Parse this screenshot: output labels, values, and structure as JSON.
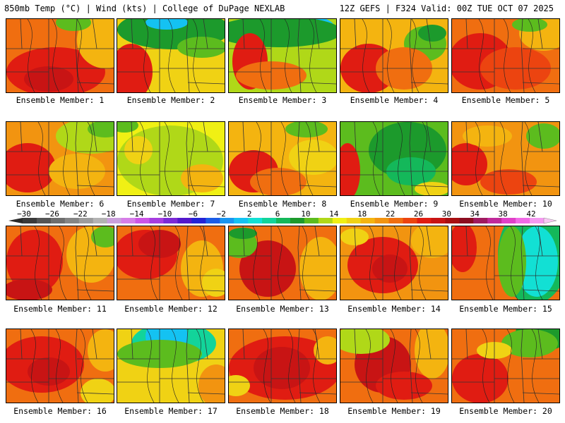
{
  "header": {
    "title_left": "850mb Temp (°C) | Wind (kts) | College of DuPage NEXLAB",
    "title_right": "12Z GEFS | F324 Valid: 00Z TUE OCT 07 2025"
  },
  "colorbar": {
    "tick_labels": [
      "−30",
      "−26",
      "−22",
      "−18",
      "−14",
      "−10",
      "−6",
      "−2",
      "2",
      "6",
      "10",
      "14",
      "18",
      "22",
      "26",
      "30",
      "34",
      "38",
      "42"
    ],
    "min": -30,
    "max": 42,
    "step": 2,
    "colors": [
      "#3a3a3a",
      "#555555",
      "#6e6e6e",
      "#858585",
      "#9c9c9c",
      "#b3b3b3",
      "#caa0dc",
      "#d67ee8",
      "#cc55e6",
      "#a63de0",
      "#7c2ad6",
      "#5318cc",
      "#2323d6",
      "#1a5ce8",
      "#1995f0",
      "#14c2f2",
      "#12e0d4",
      "#12d49a",
      "#14b85a",
      "#1c9a2c",
      "#5cbc1e",
      "#b0d818",
      "#f0f014",
      "#f0d214",
      "#f4b410",
      "#f29410",
      "#f06e10",
      "#ec4410",
      "#e01c12",
      "#c81414",
      "#a80f12",
      "#8c0c20",
      "#a01a60",
      "#c02a9a",
      "#e040c8",
      "#f06ae6",
      "#f49af0"
    ]
  },
  "members": [
    {
      "label": "Ensemble Member: 1",
      "base": "#f06e10",
      "blobs": [
        {
          "c": "#e01c12"
        },
        {
          "c": "#c81414"
        },
        {
          "c": "#f4b410"
        },
        {
          "c": "#5cbc1e"
        }
      ]
    },
    {
      "label": "Ensemble Member: 2",
      "base": "#f0d214",
      "blobs": [
        {
          "c": "#1c9a2c"
        },
        {
          "c": "#14c2f2"
        },
        {
          "c": "#e01c12"
        },
        {
          "c": "#5cbc1e"
        }
      ]
    },
    {
      "label": "Ensemble Member: 3",
      "base": "#b0d818",
      "blobs": [
        {
          "c": "#14c2f2"
        },
        {
          "c": "#1c9a2c"
        },
        {
          "c": "#e01c12"
        },
        {
          "c": "#f06e10"
        }
      ]
    },
    {
      "label": "Ensemble Member: 4",
      "base": "#f4b410",
      "blobs": [
        {
          "c": "#e01c12"
        },
        {
          "c": "#5cbc1e"
        },
        {
          "c": "#1c9a2c"
        },
        {
          "c": "#f06e10"
        }
      ]
    },
    {
      "label": "Ensemble Member: 5",
      "base": "#f06e10",
      "blobs": [
        {
          "c": "#e01c12"
        },
        {
          "c": "#ec4410"
        },
        {
          "c": "#f4b410"
        },
        {
          "c": "#5cbc1e"
        }
      ]
    },
    {
      "label": "Ensemble Member: 6",
      "base": "#f29410",
      "blobs": [
        {
          "c": "#e01c12"
        },
        {
          "c": "#b0d818"
        },
        {
          "c": "#f4b410"
        },
        {
          "c": "#5cbc1e"
        }
      ]
    },
    {
      "label": "Ensemble Member: 7",
      "base": "#f0f014",
      "blobs": [
        {
          "c": "#b0d818"
        },
        {
          "c": "#f0d214"
        },
        {
          "c": "#f4b410"
        },
        {
          "c": "#5cbc1e"
        }
      ]
    },
    {
      "label": "Ensemble Member: 8",
      "base": "#f4b410",
      "blobs": [
        {
          "c": "#e01c12"
        },
        {
          "c": "#f06e10"
        },
        {
          "c": "#5cbc1e"
        },
        {
          "c": "#f0d214"
        }
      ]
    },
    {
      "label": "Ensemble Member: 9",
      "base": "#5cbc1e",
      "blobs": [
        {
          "c": "#1c9a2c"
        },
        {
          "c": "#14b85a"
        },
        {
          "c": "#e01c12"
        },
        {
          "c": "#f0d214"
        }
      ]
    },
    {
      "label": "Ensemble Member: 10",
      "base": "#f29410",
      "blobs": [
        {
          "c": "#e01c12"
        },
        {
          "c": "#f4b410"
        },
        {
          "c": "#5cbc1e"
        },
        {
          "c": "#ec4410"
        }
      ]
    },
    {
      "label": "Ensemble Member: 11",
      "base": "#f06e10",
      "blobs": [
        {
          "c": "#e01c12"
        },
        {
          "c": "#f4b410"
        },
        {
          "c": "#5cbc1e"
        },
        {
          "c": "#c81414"
        }
      ]
    },
    {
      "label": "Ensemble Member: 12",
      "base": "#f06e10",
      "blobs": [
        {
          "c": "#e01c12"
        },
        {
          "c": "#c81414"
        },
        {
          "c": "#f4b410"
        },
        {
          "c": "#f0d214"
        }
      ]
    },
    {
      "label": "Ensemble Member: 13",
      "base": "#f06e10",
      "blobs": [
        {
          "c": "#c81414"
        },
        {
          "c": "#5cbc1e"
        },
        {
          "c": "#f4b410"
        },
        {
          "c": "#1c9a2c"
        }
      ]
    },
    {
      "label": "Ensemble Member: 14",
      "base": "#f29410",
      "blobs": [
        {
          "c": "#e01c12"
        },
        {
          "c": "#c81414"
        },
        {
          "c": "#f4b410"
        },
        {
          "c": "#f0d214"
        }
      ]
    },
    {
      "label": "Ensemble Member: 15",
      "base": "#f06e10",
      "blobs": [
        {
          "c": "#14b85a"
        },
        {
          "c": "#12e0d4"
        },
        {
          "c": "#5cbc1e"
        },
        {
          "c": "#e01c12"
        }
      ]
    },
    {
      "label": "Ensemble Member: 16",
      "base": "#f06e10",
      "blobs": [
        {
          "c": "#e01c12"
        },
        {
          "c": "#f4b410"
        },
        {
          "c": "#f0d214"
        },
        {
          "c": "#c81414"
        }
      ]
    },
    {
      "label": "Ensemble Member: 17",
      "base": "#f0d214",
      "blobs": [
        {
          "c": "#12d49a"
        },
        {
          "c": "#14c2f2"
        },
        {
          "c": "#5cbc1e"
        },
        {
          "c": "#f29410"
        }
      ]
    },
    {
      "label": "Ensemble Member: 18",
      "base": "#f06e10",
      "blobs": [
        {
          "c": "#e01c12"
        },
        {
          "c": "#c81414"
        },
        {
          "c": "#f4b410"
        },
        {
          "c": "#f0d214"
        }
      ]
    },
    {
      "label": "Ensemble Member: 19",
      "base": "#f06e10",
      "blobs": [
        {
          "c": "#c81414"
        },
        {
          "c": "#b0d818"
        },
        {
          "c": "#f4b410"
        },
        {
          "c": "#e01c12"
        }
      ]
    },
    {
      "label": "Ensemble Member: 20",
      "base": "#f06e10",
      "blobs": [
        {
          "c": "#1c9a2c"
        },
        {
          "c": "#5cbc1e"
        },
        {
          "c": "#e01c12"
        },
        {
          "c": "#f0d214"
        }
      ]
    }
  ]
}
